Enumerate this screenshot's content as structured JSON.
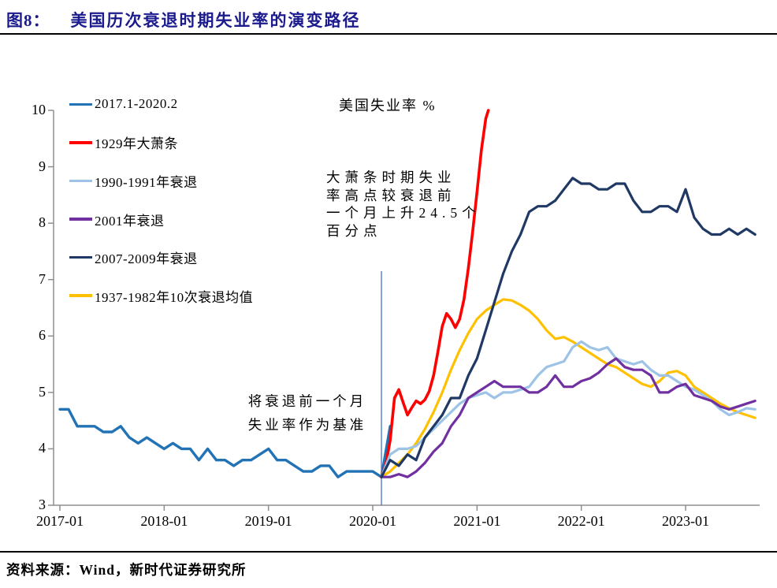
{
  "header": {
    "figure_label": "图8：",
    "title": "美国历次衰退时期失业率的演变路径"
  },
  "footer": {
    "source": "资料来源：Wind，新时代证券研究所"
  },
  "annotations": {
    "depression_note_lines": [
      "大萧条时期失业",
      "率高点较衰退前",
      "一个月上升24.5个",
      "百分点"
    ],
    "depression_note_text": "大萧条时期失业率高点较衰退前一个月上升24.5个百分点",
    "baseline_note_lines": [
      "将衰退前一个月",
      "失业率作为基准"
    ],
    "baseline_note_text": "将衰退前一个月失业率作为基准"
  },
  "chart_data": {
    "type": "line",
    "title": "美国失业率 %",
    "xlabel": "",
    "ylabel": "",
    "ylim": [
      3,
      10
    ],
    "grid": false,
    "legend_position": "top-left",
    "yticks": [
      3,
      4,
      5,
      6,
      7,
      8,
      9,
      10
    ],
    "xticks": [
      {
        "label": "2017-01",
        "month": 0
      },
      {
        "label": "2018-01",
        "month": 12
      },
      {
        "label": "2019-01",
        "month": 24
      },
      {
        "label": "2020-01",
        "month": 36
      },
      {
        "label": "2021-01",
        "month": 48
      },
      {
        "label": "2022-01",
        "month": 60
      },
      {
        "label": "2023-01",
        "month": 72
      }
    ],
    "baseline_vline": {
      "month": 37,
      "from": 3.0,
      "to": 7.15,
      "color": "#4472C4"
    },
    "draw_order": [
      0,
      5,
      1,
      2,
      3,
      4
    ],
    "series": [
      {
        "name": "2017.1-2020.2",
        "color": "#2272B6",
        "width": 3.4,
        "start_month": 0,
        "values": [
          4.7,
          4.7,
          4.4,
          4.4,
          4.4,
          4.3,
          4.3,
          4.4,
          4.2,
          4.1,
          4.2,
          4.1,
          4.0,
          4.1,
          4.0,
          4.0,
          3.8,
          4.0,
          3.8,
          3.8,
          3.7,
          3.8,
          3.8,
          3.9,
          4.0,
          3.8,
          3.8,
          3.7,
          3.6,
          3.6,
          3.7,
          3.7,
          3.5,
          3.6,
          3.6,
          3.6,
          3.6,
          3.5,
          4.4
        ]
      },
      {
        "name": "1929年大萧条",
        "color": "#FF0000",
        "width": 3.6,
        "start_month": 37,
        "points": [
          [
            0,
            3.5
          ],
          [
            0.5,
            3.72
          ],
          [
            1,
            4.15
          ],
          [
            1.5,
            4.9
          ],
          [
            2,
            5.05
          ],
          [
            2.5,
            4.82
          ],
          [
            3,
            4.6
          ],
          [
            3.5,
            4.73
          ],
          [
            4,
            4.85
          ],
          [
            4.5,
            4.8
          ],
          [
            5,
            4.87
          ],
          [
            5.5,
            5.02
          ],
          [
            6,
            5.3
          ],
          [
            6.5,
            5.72
          ],
          [
            7,
            6.17
          ],
          [
            7.5,
            6.4
          ],
          [
            8,
            6.3
          ],
          [
            8.5,
            6.15
          ],
          [
            9,
            6.3
          ],
          [
            9.5,
            6.65
          ],
          [
            10,
            7.2
          ],
          [
            10.5,
            7.85
          ],
          [
            11,
            8.55
          ],
          [
            11.5,
            9.3
          ],
          [
            12,
            9.85
          ],
          [
            12.3,
            10.0
          ]
        ]
      },
      {
        "name": "1990-1991年衰退",
        "color": "#9DC3E6",
        "width": 3.2,
        "start_month": 37,
        "values": [
          3.5,
          3.9,
          4.0,
          4.0,
          4.05,
          4.2,
          4.35,
          4.5,
          4.65,
          4.8,
          4.9,
          4.95,
          5.0,
          4.9,
          5.0,
          5.0,
          5.05,
          5.1,
          5.3,
          5.45,
          5.5,
          5.55,
          5.8,
          5.9,
          5.8,
          5.75,
          5.8,
          5.6,
          5.55,
          5.5,
          5.55,
          5.4,
          5.3,
          5.3,
          5.2,
          5.1,
          5.05,
          4.95,
          4.85,
          4.7,
          4.6,
          4.65,
          4.72,
          4.7
        ]
      },
      {
        "name": "2001年衰退",
        "color": "#7030A0",
        "width": 3.2,
        "start_month": 37,
        "values": [
          3.5,
          3.5,
          3.55,
          3.5,
          3.6,
          3.75,
          3.95,
          4.1,
          4.4,
          4.6,
          4.9,
          5.0,
          5.1,
          5.2,
          5.1,
          5.1,
          5.1,
          5.0,
          5.0,
          5.1,
          5.3,
          5.1,
          5.1,
          5.2,
          5.25,
          5.35,
          5.5,
          5.6,
          5.45,
          5.4,
          5.4,
          5.3,
          5.0,
          5.0,
          5.1,
          5.15,
          4.95,
          4.9,
          4.85,
          4.75,
          4.7,
          4.75,
          4.8,
          4.85
        ]
      },
      {
        "name": "2007-2009年衰退",
        "color": "#1F3864",
        "width": 3.2,
        "start_month": 37,
        "values": [
          3.5,
          3.8,
          3.7,
          3.9,
          3.8,
          4.2,
          4.4,
          4.6,
          4.9,
          4.9,
          5.3,
          5.6,
          6.1,
          6.6,
          7.1,
          7.5,
          7.8,
          8.2,
          8.3,
          8.3,
          8.4,
          8.6,
          8.8,
          8.7,
          8.7,
          8.6,
          8.6,
          8.7,
          8.7,
          8.4,
          8.2,
          8.2,
          8.3,
          8.3,
          8.2,
          8.6,
          8.1,
          7.9,
          7.8,
          7.8,
          7.9,
          7.8,
          7.9,
          7.8
        ]
      },
      {
        "name": "1937-1982年10次衰退均值",
        "color": "#FFC000",
        "width": 3.2,
        "start_month": 37,
        "values": [
          3.5,
          3.6,
          3.75,
          3.9,
          4.1,
          4.35,
          4.65,
          5.0,
          5.4,
          5.75,
          6.05,
          6.3,
          6.45,
          6.55,
          6.65,
          6.63,
          6.55,
          6.45,
          6.3,
          6.1,
          5.95,
          5.98,
          5.9,
          5.8,
          5.7,
          5.6,
          5.5,
          5.45,
          5.35,
          5.25,
          5.15,
          5.1,
          5.2,
          5.35,
          5.38,
          5.3,
          5.1,
          5.0,
          4.9,
          4.8,
          4.72,
          4.65,
          4.6,
          4.55
        ]
      }
    ]
  }
}
